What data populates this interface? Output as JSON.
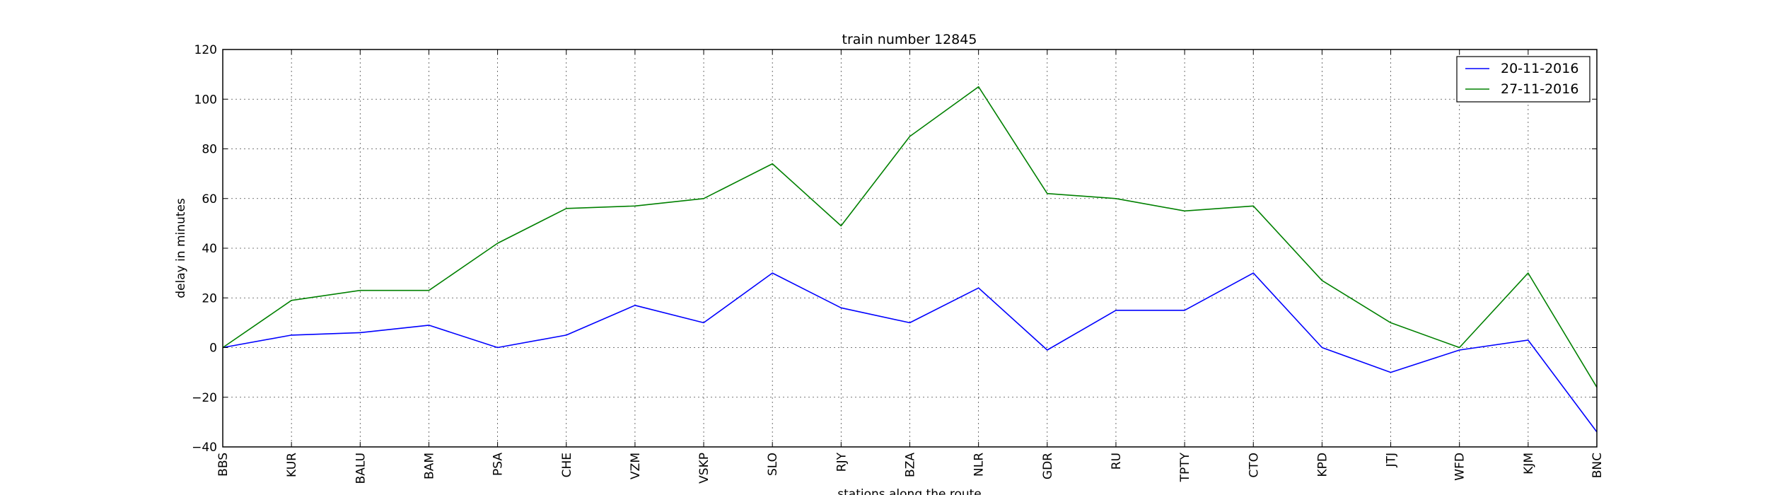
{
  "chart_data": {
    "type": "line",
    "title": "train number 12845",
    "xlabel": "stations along the route",
    "ylabel": "delay in minutes",
    "ylim": [
      -40,
      120
    ],
    "yticks": [
      -40,
      -20,
      0,
      20,
      40,
      60,
      80,
      100,
      120
    ],
    "grid": true,
    "legend_position": "top-right",
    "categories": [
      "BBS",
      "KUR",
      "BALU",
      "BAM",
      "PSA",
      "CHE",
      "VZM",
      "VSKP",
      "SLO",
      "RJY",
      "BZA",
      "NLR",
      "GDR",
      "RU",
      "TPTY",
      "CTO",
      "KPD",
      "JTJ",
      "WFD",
      "KJM",
      "BNC"
    ],
    "series": [
      {
        "name": "20-11-2016",
        "color": "#0000ff",
        "values": [
          0,
          5,
          6,
          9,
          0,
          5,
          17,
          10,
          30,
          16,
          10,
          24,
          -1,
          15,
          15,
          30,
          0,
          -10,
          -1,
          3,
          -34
        ]
      },
      {
        "name": "27-11-2016",
        "color": "#008000",
        "values": [
          0,
          19,
          23,
          23,
          42,
          56,
          57,
          60,
          74,
          49,
          85,
          105,
          62,
          60,
          55,
          57,
          27,
          10,
          0,
          30,
          -16
        ]
      }
    ]
  }
}
